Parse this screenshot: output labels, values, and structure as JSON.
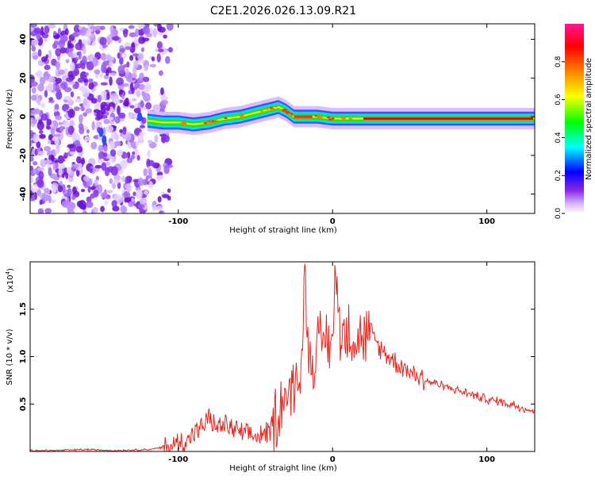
{
  "title": "C2E1.2026.026.13.09.R21",
  "chart_data": [
    {
      "type": "heatmap",
      "xlabel": "Height of straight line (km)",
      "ylabel": "Frequency (Hz)",
      "xlim": [
        -196,
        131
      ],
      "ylim": [
        -50,
        48
      ],
      "x_ticks": [
        -100,
        0,
        100
      ],
      "y_ticks": [
        -40,
        -20,
        0,
        20,
        40
      ],
      "x_tick_labels": [
        "-100",
        "0",
        "100"
      ],
      "y_tick_labels": [
        "-40",
        "-20",
        "0",
        "20",
        "40"
      ],
      "colorbar": {
        "label": "Normalized spectral amplitude",
        "range": [
          0,
          1
        ],
        "ticks": [
          0.0,
          0.2,
          0.4,
          0.6,
          0.8
        ],
        "tick_labels": [
          "0.0",
          "0.2",
          "0.4",
          "0.6",
          "0.8"
        ],
        "colors": [
          "#ffffff",
          "#d8b8ff",
          "#8a2be2",
          "#0000ff",
          "#00ffff",
          "#00ff00",
          "#ffff00",
          "#ff8000",
          "#ff0000",
          "#ff1493"
        ]
      },
      "ridge": {
        "x": [
          -120,
          -110,
          -100,
          -90,
          -80,
          -70,
          -60,
          -50,
          -40,
          -35,
          -30,
          -25,
          -20,
          -10,
          0,
          10,
          20,
          40,
          60,
          80,
          100,
          120,
          131
        ],
        "y": [
          -2,
          -3,
          -3,
          -4,
          -3,
          -1,
          0,
          2,
          4,
          5,
          3,
          0,
          0,
          0,
          -1,
          -1,
          -1,
          -1,
          -1,
          -1,
          -1,
          -1,
          -1
        ]
      },
      "noise_region_x": [
        -196,
        -105
      ]
    },
    {
      "type": "line",
      "xlabel": "Height of straight line (km)",
      "ylabel": "SNR (10 * v/v)",
      "y_multiplier_label": "(x10",
      "y_multiplier_exp": "4",
      "xlim": [
        -196,
        131
      ],
      "ylim": [
        0,
        2.0
      ],
      "x_ticks": [
        -100,
        0,
        100
      ],
      "y_ticks": [
        0.5,
        1.0,
        1.5
      ],
      "x_tick_labels": [
        "-100",
        "0",
        "100"
      ],
      "y_tick_labels": [
        "0.5",
        "1.0",
        "1.5"
      ],
      "series": [
        {
          "color": "#e8251d",
          "x": [
            -196,
            -180,
            -160,
            -140,
            -120,
            -105,
            -95,
            -85,
            -80,
            -75,
            -70,
            -60,
            -50,
            -40,
            -35,
            -30,
            -25,
            -20,
            -18,
            -15,
            -10,
            -5,
            0,
            2,
            5,
            10,
            15,
            20,
            25,
            30,
            40,
            50,
            60,
            70,
            80,
            90,
            100,
            110,
            120,
            131
          ],
          "y": [
            0.01,
            0.01,
            0.02,
            0.01,
            0.02,
            0.05,
            0.12,
            0.25,
            0.35,
            0.25,
            0.28,
            0.2,
            0.15,
            0.22,
            0.45,
            0.6,
            0.7,
            0.85,
            1.98,
            0.9,
            1.1,
            1.2,
            1.15,
            1.85,
            1.3,
            1.25,
            1.2,
            1.2,
            1.25,
            1.1,
            0.95,
            0.85,
            0.75,
            0.7,
            0.65,
            0.6,
            0.55,
            0.52,
            0.48,
            0.42
          ]
        }
      ]
    }
  ]
}
